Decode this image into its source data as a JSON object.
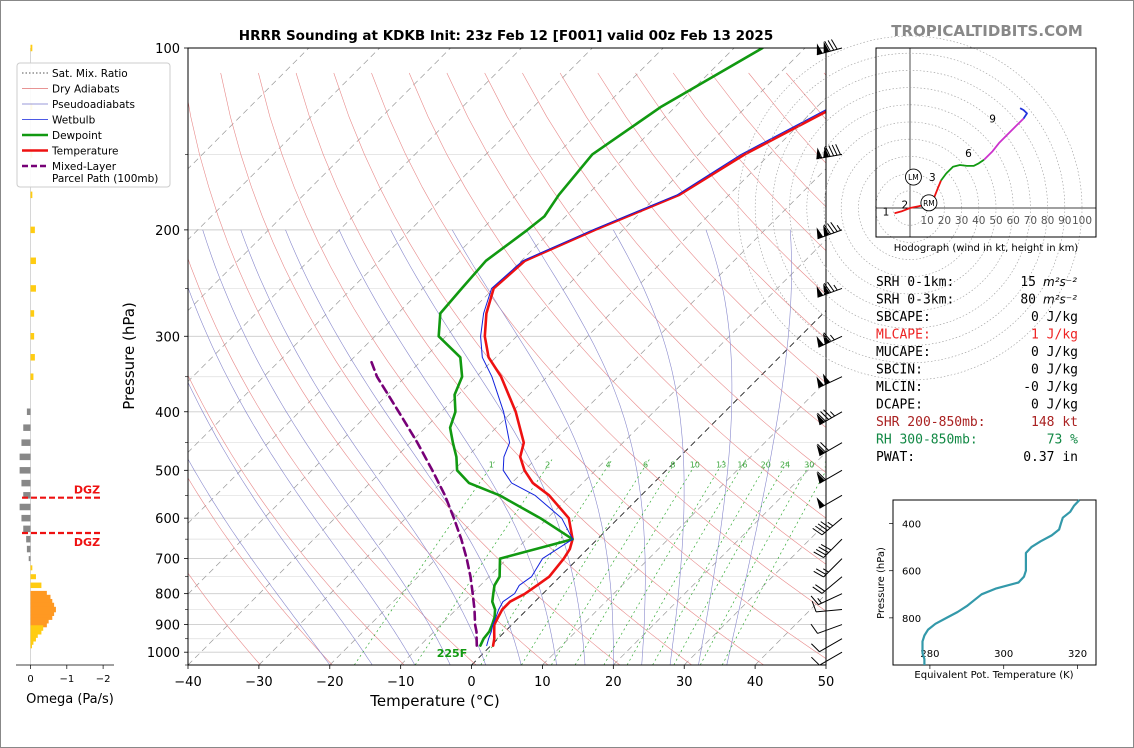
{
  "page": {
    "title": "HRRR Sounding at KDKB Init: 23z Feb 12 [F001] valid 00z Feb 13 2025",
    "watermark": "TROPICALTIDBITS.COM"
  },
  "chart_data": [
    {
      "type": "line",
      "name": "skewt",
      "xlabel": "Temperature (°C)",
      "ylabel": "Pressure (hPa)",
      "xlim": [
        -40,
        50
      ],
      "ylim": [
        1050,
        100
      ],
      "y_scale": "log",
      "skew": "45 degrees",
      "grid": true,
      "x_ticks": [
        -40,
        -30,
        -20,
        -10,
        0,
        10,
        20,
        30,
        40,
        50
      ],
      "y_ticks": [
        100,
        200,
        300,
        400,
        500,
        600,
        700,
        800,
        900,
        1000
      ],
      "series": [
        {
          "name": "Temperature",
          "color": "#ee1111",
          "points": [
            [
              100,
              -20.0
            ],
            [
              150,
              -33.5
            ],
            [
              175,
              -37.0
            ],
            [
              200,
              -44.0
            ],
            [
              225,
              -49.5
            ],
            [
              250,
              -50.0
            ],
            [
              275,
              -47.5
            ],
            [
              300,
              -44.5
            ],
            [
              325,
              -41.0
            ],
            [
              350,
              -36.5
            ],
            [
              400,
              -29.5
            ],
            [
              450,
              -24.0
            ],
            [
              475,
              -22.5
            ],
            [
              500,
              -20.0
            ],
            [
              525,
              -17.0
            ],
            [
              550,
              -13.0
            ],
            [
              600,
              -7.0
            ],
            [
              650,
              -3.5
            ],
            [
              675,
              -2.5
            ],
            [
              700,
              -2.0
            ],
            [
              750,
              -1.5
            ],
            [
              775,
              -2.0
            ],
            [
              800,
              -2.5
            ],
            [
              825,
              -3.5
            ],
            [
              850,
              -3.5
            ],
            [
              875,
              -3.0
            ],
            [
              900,
              -2.5
            ],
            [
              925,
              -1.5
            ],
            [
              950,
              -0.5
            ],
            [
              975,
              0.3
            ]
          ]
        },
        {
          "name": "Dewpoint",
          "color": "#119911",
          "points": [
            [
              100,
              -46.0
            ],
            [
              125,
              -52.0
            ],
            [
              150,
              -55.0
            ],
            [
              175,
              -54.0
            ],
            [
              190,
              -53.0
            ],
            [
              200,
              -53.5
            ],
            [
              225,
              -55.0
            ],
            [
              250,
              -54.5
            ],
            [
              275,
              -54.0
            ],
            [
              300,
              -51.0
            ],
            [
              325,
              -45.0
            ],
            [
              350,
              -42.0
            ],
            [
              375,
              -40.5
            ],
            [
              400,
              -38.0
            ],
            [
              425,
              -36.5
            ],
            [
              450,
              -34.0
            ],
            [
              475,
              -31.5
            ],
            [
              500,
              -29.5
            ],
            [
              525,
              -26.0
            ],
            [
              550,
              -20.0
            ],
            [
              600,
              -11.0
            ],
            [
              650,
              -3.5
            ],
            [
              700,
              -11.0
            ],
            [
              750,
              -8.5
            ],
            [
              775,
              -8.0
            ],
            [
              800,
              -7.0
            ],
            [
              825,
              -6.0
            ],
            [
              850,
              -4.5
            ],
            [
              875,
              -3.5
            ],
            [
              900,
              -2.8
            ],
            [
              925,
              -2.2
            ],
            [
              950,
              -2.0
            ],
            [
              975,
              -1.5
            ]
          ]
        },
        {
          "name": "Wetbulb",
          "color": "#1122dd",
          "points": [
            [
              100,
              -20.5
            ],
            [
              150,
              -34.0
            ],
            [
              175,
              -37.3
            ],
            [
              200,
              -44.3
            ],
            [
              225,
              -49.8
            ],
            [
              250,
              -50.3
            ],
            [
              275,
              -47.9
            ],
            [
              300,
              -45.1
            ],
            [
              325,
              -41.9
            ],
            [
              350,
              -37.8
            ],
            [
              400,
              -31.2
            ],
            [
              450,
              -26.0
            ],
            [
              475,
              -24.8
            ],
            [
              500,
              -23.0
            ],
            [
              525,
              -20.0
            ],
            [
              550,
              -15.0
            ],
            [
              600,
              -8.0
            ],
            [
              650,
              -3.5
            ],
            [
              700,
              -5.0
            ],
            [
              750,
              -4.0
            ],
            [
              775,
              -4.5
            ],
            [
              800,
              -4.0
            ],
            [
              825,
              -4.5
            ],
            [
              850,
              -4.0
            ],
            [
              875,
              -3.3
            ],
            [
              900,
              -2.7
            ],
            [
              925,
              -1.9
            ],
            [
              950,
              -1.3
            ],
            [
              975,
              -0.6
            ]
          ]
        },
        {
          "name": "Mixed-Layer Parcel Path (100mb)",
          "color": "#770077",
          "dashed": true,
          "points": [
            [
              975,
              -2.0
            ],
            [
              950,
              -3.0
            ],
            [
              925,
              -4.0
            ],
            [
              900,
              -5.2
            ],
            [
              850,
              -7.4
            ],
            [
              800,
              -9.9
            ],
            [
              750,
              -12.6
            ],
            [
              700,
              -15.7
            ],
            [
              650,
              -19.2
            ],
            [
              600,
              -23.2
            ],
            [
              550,
              -27.7
            ],
            [
              500,
              -33.0
            ],
            [
              450,
              -39.0
            ],
            [
              400,
              -46.0
            ],
            [
              350,
              -54.0
            ],
            [
              330,
              -57.0
            ]
          ]
        }
      ],
      "mixing_ratio_labels": [
        "1",
        "2",
        "4",
        "6",
        "8",
        "10",
        "13",
        "16",
        "20",
        "24",
        "30",
        "36"
      ],
      "annotation": "225F"
    },
    {
      "type": "bar",
      "name": "omega",
      "xlabel": "Omega (Pa/s)",
      "x_ticks": [
        "0",
        "−1",
        "−2"
      ],
      "xlim": [
        0.4,
        -2.3
      ],
      "dgz_label": "DGZ",
      "dgz_pressures": [
        555,
        635
      ],
      "levels": [
        100,
        125,
        150,
        175,
        200,
        225,
        250,
        275,
        300,
        325,
        350,
        400,
        425,
        450,
        475,
        500,
        525,
        550,
        575,
        600,
        625,
        650,
        675,
        700,
        725,
        750,
        775,
        800,
        812,
        825,
        837,
        850,
        862,
        875,
        887,
        900,
        912,
        925,
        937,
        950,
        962,
        975
      ],
      "values": [
        -0.05,
        -0.05,
        -0.05,
        -0.05,
        -0.12,
        -0.15,
        -0.15,
        -0.1,
        -0.1,
        -0.12,
        -0.08,
        0.1,
        0.2,
        0.25,
        0.3,
        0.3,
        0.25,
        0.2,
        0.3,
        0.25,
        0.2,
        0.12,
        0.1,
        0.05,
        -0.05,
        -0.15,
        -0.3,
        -0.45,
        -0.55,
        -0.6,
        -0.65,
        -0.7,
        -0.65,
        -0.6,
        -0.5,
        -0.45,
        -0.35,
        -0.3,
        -0.2,
        -0.15,
        -0.08,
        -0.04
      ]
    },
    {
      "type": "line",
      "name": "hodograph",
      "xlabel": "Hodograph (wind in kt, height in km)",
      "ring_labels": [
        "10",
        "20",
        "30",
        "40",
        "50",
        "60",
        "70",
        "80",
        "90",
        "100"
      ],
      "storm_motion_labels": [
        "LM",
        "RM"
      ],
      "height_labels": [
        "1",
        "2",
        "3",
        "6",
        "9"
      ],
      "height_label_points": [
        [
          -14,
          -2
        ],
        [
          -3,
          2
        ],
        [
          13,
          18
        ],
        [
          34,
          32
        ],
        [
          48,
          52
        ]
      ],
      "storm_motions": [
        [
          2,
          18
        ],
        [
          11,
          3
        ]
      ],
      "segments": [
        {
          "color": "#ee1111",
          "points": [
            [
              -9,
              -3
            ],
            [
              -5,
              -2
            ],
            [
              0,
              0
            ],
            [
              5,
              1
            ],
            [
              9,
              2
            ],
            [
              14,
              6
            ],
            [
              16,
              11
            ],
            [
              18,
              16
            ]
          ]
        },
        {
          "color": "#119911",
          "points": [
            [
              18,
              16
            ],
            [
              21,
              20
            ],
            [
              25,
              24
            ],
            [
              29,
              25
            ],
            [
              33,
              24.5
            ],
            [
              37,
              24.5
            ],
            [
              40,
              26
            ],
            [
              43,
              28
            ]
          ]
        },
        {
          "color": "#cc33cc",
          "points": [
            [
              43,
              28
            ],
            [
              48,
              33
            ],
            [
              52,
              38
            ],
            [
              57,
              43
            ],
            [
              62,
              48
            ],
            [
              66,
              52
            ]
          ]
        },
        {
          "color": "#2233dd",
          "points": [
            [
              66,
              52
            ],
            [
              68,
              55
            ],
            [
              66,
              57
            ],
            [
              64,
              58
            ]
          ]
        }
      ]
    },
    {
      "type": "line",
      "name": "theta-e",
      "xlabel": "Equivalent Pot. Temperature (K)",
      "ylabel": "Pressure (hPa)",
      "xlim": [
        270,
        325
      ],
      "ylim": [
        1000,
        300
      ],
      "x_ticks": [
        "280",
        "300",
        "320"
      ],
      "y_ticks": [
        "400",
        "600",
        "800"
      ],
      "line_color": "#3399aa",
      "points": [
        [
          300,
          320.5
        ],
        [
          325,
          319
        ],
        [
          350,
          318
        ],
        [
          375,
          316
        ],
        [
          400,
          315.5
        ],
        [
          425,
          315
        ],
        [
          450,
          313
        ],
        [
          475,
          310
        ],
        [
          500,
          307.5
        ],
        [
          525,
          306
        ],
        [
          550,
          306
        ],
        [
          575,
          306
        ],
        [
          600,
          306
        ],
        [
          625,
          305.5
        ],
        [
          650,
          304
        ],
        [
          675,
          298
        ],
        [
          700,
          294
        ],
        [
          725,
          292
        ],
        [
          750,
          290
        ],
        [
          775,
          287.5
        ],
        [
          800,
          284.5
        ],
        [
          825,
          281.5
        ],
        [
          850,
          279.5
        ],
        [
          875,
          278.5
        ],
        [
          900,
          278
        ],
        [
          925,
          278
        ],
        [
          950,
          278
        ],
        [
          975,
          278.5
        ],
        [
          1000,
          278.5
        ]
      ]
    }
  ],
  "legend": [
    {
      "label": "Sat. Mix. Ratio",
      "color": "#555555",
      "style": "dotted"
    },
    {
      "label": "Dry Adiabats",
      "color": "#e07070",
      "style": "solid-thin"
    },
    {
      "label": "Pseudoadiabats",
      "color": "#7777cc",
      "style": "solid-thin"
    },
    {
      "label": "Wetbulb",
      "color": "#1122dd",
      "style": "solid-thin"
    },
    {
      "label": "Dewpoint",
      "color": "#119911",
      "style": "solid"
    },
    {
      "label": "Temperature",
      "color": "#ee1111",
      "style": "solid"
    },
    {
      "label": "Mixed-Layer",
      "label2": "Parcel Path (100mb)",
      "color": "#770077",
      "style": "dashed"
    }
  ],
  "indices": [
    {
      "label": "SRH 0-1km:",
      "value": "15",
      "unit": "m²s⁻²",
      "color": "#000000"
    },
    {
      "label": "SRH 0-3km:",
      "value": "80",
      "unit": "m²s⁻²",
      "color": "#000000"
    },
    {
      "label": "SBCAPE:",
      "value": "0 J/kg",
      "color": "#000000"
    },
    {
      "label": "MLCAPE:",
      "value": "1 J/kg",
      "color": "#ee2222"
    },
    {
      "label": "MUCAPE:",
      "value": "0 J/kg",
      "color": "#000000"
    },
    {
      "label": "SBCIN:",
      "value": "0 J/kg",
      "color": "#000000"
    },
    {
      "label": "MLCIN:",
      "value": "-0 J/kg",
      "color": "#000000"
    },
    {
      "label": "DCAPE:",
      "value": "0 J/kg",
      "color": "#000000"
    },
    {
      "label": "SHR 200-850mb:",
      "value": "148 kt",
      "color": "#aa2222"
    },
    {
      "label": "RH 300-850mb:",
      "value": "73 %",
      "color": "#118844"
    },
    {
      "label": "PWAT:",
      "value": "0.37 in",
      "color": "#000000"
    }
  ],
  "wind_barbs": [
    {
      "p": 100,
      "dir": 255,
      "spd": 130
    },
    {
      "p": 150,
      "dir": 260,
      "spd": 140
    },
    {
      "p": 200,
      "dir": 250,
      "spd": 135
    },
    {
      "p": 250,
      "dir": 250,
      "spd": 125
    },
    {
      "p": 300,
      "dir": 245,
      "spd": 115
    },
    {
      "p": 350,
      "dir": 245,
      "spd": 100
    },
    {
      "p": 400,
      "dir": 240,
      "spd": 85
    },
    {
      "p": 450,
      "dir": 240,
      "spd": 70
    },
    {
      "p": 500,
      "dir": 240,
      "spd": 60
    },
    {
      "p": 550,
      "dir": 240,
      "spd": 50
    },
    {
      "p": 600,
      "dir": 230,
      "spd": 45
    },
    {
      "p": 650,
      "dir": 225,
      "spd": 40
    },
    {
      "p": 700,
      "dir": 225,
      "spd": 25
    },
    {
      "p": 750,
      "dir": 230,
      "spd": 20
    },
    {
      "p": 800,
      "dir": 245,
      "spd": 15
    },
    {
      "p": 850,
      "dir": 265,
      "spd": 10
    },
    {
      "p": 900,
      "dir": 250,
      "spd": 10
    },
    {
      "p": 950,
      "dir": 240,
      "spd": 10
    },
    {
      "p": 1000,
      "dir": 240,
      "spd": 10
    }
  ]
}
